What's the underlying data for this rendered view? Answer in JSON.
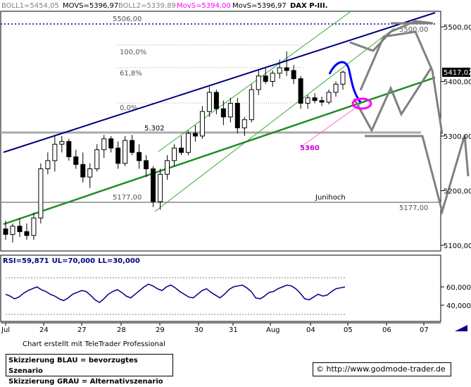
{
  "header": {
    "items": [
      {
        "text": "BOLL1=5454,05",
        "color": "#808080"
      },
      {
        "text": "MOVS=5396,97",
        "color": "#000000"
      },
      {
        "text": "BOLL2=5339,89",
        "color": "#808080"
      },
      {
        "text": "MovS=5394,00",
        "color": "#ff00ff"
      },
      {
        "text": "MovS=5396,97",
        "color": "#000000"
      },
      {
        "text": "DAX P-III.",
        "color": "#000000"
      }
    ]
  },
  "colors": {
    "candle_up": "#ffffff",
    "candle_down": "#000000",
    "blue_trend": "#000080",
    "green_trend": "#228b22",
    "green_channel": "#33aa33",
    "blue_scenario": "#0000ff",
    "grey_scenario": "#808080",
    "magenta": "#ff00ff",
    "rsi_line": "#000080"
  },
  "annotations": {
    "level_5506": "5506,00",
    "fib_100": "100,0%",
    "fib_618": "61,8%",
    "fib_0": "0,0%",
    "level_5302": "5.302",
    "level_5177_left": "5177,00",
    "level_5177_right": "5177,00",
    "level_5500_right": "5500,00",
    "junihoch": "Junihoch",
    "label_5360": "5360",
    "price_marker": "5417,02"
  },
  "rsi": {
    "label_prefix": "RSI=",
    "value": "59,871",
    "ul": "UL=70,000",
    "ll": "LL=30,000"
  },
  "credit": "Chart erstellt mit TeleTrader Professional",
  "legend": {
    "line1": "Skizzierung BLAU = bevorzugtes Szenario",
    "line2": "Skizzierung GRAU = Alternativszenario"
  },
  "url": {
    "icon": "copyright-icon",
    "text": "http://www.godmode-trader.de"
  },
  "chart_data": {
    "type": "candlestick",
    "title": "DAX P-III.",
    "y_ticks": [
      5100,
      5200,
      5300,
      5400,
      5500
    ],
    "y_tick_labels": [
      "5100,00",
      "5200,00",
      "5300,00",
      "5400,00",
      "5500,00"
    ],
    "ylim": [
      5075,
      5560
    ],
    "x_tick_labels": [
      "Jul",
      "24",
      "27",
      "28",
      "29",
      "30",
      "31",
      "Aug",
      "04",
      "05",
      "06",
      "07"
    ],
    "levels": {
      "resistance_dotted": 5506,
      "fib_100": 5465,
      "fib_618": 5418,
      "fib_0": 5350,
      "support_5302": 5302,
      "junihoch": 5177,
      "target_5360": 5360
    },
    "candles": [
      {
        "o": 5130,
        "h": 5145,
        "l": 5110,
        "c": 5120
      },
      {
        "o": 5120,
        "h": 5140,
        "l": 5105,
        "c": 5135
      },
      {
        "o": 5135,
        "h": 5150,
        "l": 5115,
        "c": 5125
      },
      {
        "o": 5125,
        "h": 5140,
        "l": 5110,
        "c": 5118
      },
      {
        "o": 5118,
        "h": 5160,
        "l": 5110,
        "c": 5150
      },
      {
        "o": 5150,
        "h": 5250,
        "l": 5140,
        "c": 5240
      },
      {
        "o": 5240,
        "h": 5270,
        "l": 5230,
        "c": 5255
      },
      {
        "o": 5255,
        "h": 5300,
        "l": 5235,
        "c": 5285
      },
      {
        "o": 5285,
        "h": 5300,
        "l": 5270,
        "c": 5290
      },
      {
        "o": 5290,
        "h": 5295,
        "l": 5255,
        "c": 5262
      },
      {
        "o": 5262,
        "h": 5275,
        "l": 5240,
        "c": 5248
      },
      {
        "o": 5248,
        "h": 5270,
        "l": 5215,
        "c": 5225
      },
      {
        "o": 5225,
        "h": 5250,
        "l": 5205,
        "c": 5240
      },
      {
        "o": 5240,
        "h": 5285,
        "l": 5235,
        "c": 5275
      },
      {
        "o": 5275,
        "h": 5302,
        "l": 5260,
        "c": 5295
      },
      {
        "o": 5295,
        "h": 5300,
        "l": 5270,
        "c": 5278
      },
      {
        "o": 5278,
        "h": 5290,
        "l": 5240,
        "c": 5250
      },
      {
        "o": 5250,
        "h": 5300,
        "l": 5245,
        "c": 5292
      },
      {
        "o": 5292,
        "h": 5302,
        "l": 5265,
        "c": 5270
      },
      {
        "o": 5270,
        "h": 5285,
        "l": 5240,
        "c": 5255
      },
      {
        "o": 5255,
        "h": 5265,
        "l": 5225,
        "c": 5240
      },
      {
        "o": 5240,
        "h": 5245,
        "l": 5170,
        "c": 5180
      },
      {
        "o": 5180,
        "h": 5240,
        "l": 5165,
        "c": 5230
      },
      {
        "o": 5230,
        "h": 5265,
        "l": 5220,
        "c": 5255
      },
      {
        "o": 5255,
        "h": 5285,
        "l": 5245,
        "c": 5278
      },
      {
        "o": 5278,
        "h": 5300,
        "l": 5265,
        "c": 5270
      },
      {
        "o": 5270,
        "h": 5310,
        "l": 5265,
        "c": 5305
      },
      {
        "o": 5305,
        "h": 5320,
        "l": 5290,
        "c": 5300
      },
      {
        "o": 5300,
        "h": 5355,
        "l": 5295,
        "c": 5345
      },
      {
        "o": 5345,
        "h": 5390,
        "l": 5335,
        "c": 5380
      },
      {
        "o": 5380,
        "h": 5385,
        "l": 5340,
        "c": 5350
      },
      {
        "o": 5350,
        "h": 5365,
        "l": 5320,
        "c": 5335
      },
      {
        "o": 5335,
        "h": 5370,
        "l": 5325,
        "c": 5360
      },
      {
        "o": 5360,
        "h": 5370,
        "l": 5305,
        "c": 5315
      },
      {
        "o": 5315,
        "h": 5335,
        "l": 5300,
        "c": 5330
      },
      {
        "o": 5330,
        "h": 5395,
        "l": 5325,
        "c": 5385
      },
      {
        "o": 5385,
        "h": 5420,
        "l": 5375,
        "c": 5410
      },
      {
        "o": 5410,
        "h": 5425,
        "l": 5395,
        "c": 5400
      },
      {
        "o": 5400,
        "h": 5420,
        "l": 5390,
        "c": 5415
      },
      {
        "o": 5415,
        "h": 5440,
        "l": 5405,
        "c": 5425
      },
      {
        "o": 5425,
        "h": 5455,
        "l": 5410,
        "c": 5420
      },
      {
        "o": 5420,
        "h": 5430,
        "l": 5395,
        "c": 5405
      },
      {
        "o": 5405,
        "h": 5410,
        "l": 5350,
        "c": 5360
      },
      {
        "o": 5360,
        "h": 5375,
        "l": 5350,
        "c": 5370
      },
      {
        "o": 5370,
        "h": 5378,
        "l": 5360,
        "c": 5365
      },
      {
        "o": 5365,
        "h": 5372,
        "l": 5355,
        "c": 5362
      },
      {
        "o": 5362,
        "h": 5385,
        "l": 5358,
        "c": 5380
      },
      {
        "o": 5380,
        "h": 5400,
        "l": 5372,
        "c": 5395
      },
      {
        "o": 5395,
        "h": 5420,
        "l": 5385,
        "c": 5417
      }
    ],
    "rsi_values": [
      52,
      50,
      47,
      49,
      53,
      56,
      58,
      60,
      57,
      55,
      52,
      50,
      47,
      45,
      48,
      52,
      54,
      56,
      55,
      51,
      46,
      43,
      47,
      52,
      55,
      57,
      54,
      50,
      48,
      52,
      56,
      60,
      63,
      61,
      58,
      56,
      60,
      62,
      59,
      55,
      52,
      49,
      48,
      52,
      56,
      58,
      54,
      51,
      48,
      52,
      57,
      60,
      61,
      62,
      59,
      55,
      48,
      47,
      50,
      54,
      55,
      58,
      60,
      62,
      61,
      58,
      53,
      47,
      46,
      49,
      52,
      50,
      51,
      55,
      58,
      59,
      60
    ],
    "rsi_ticks": [
      40,
      60
    ],
    "rsi_ul": 70,
    "rsi_ll": 30
  }
}
